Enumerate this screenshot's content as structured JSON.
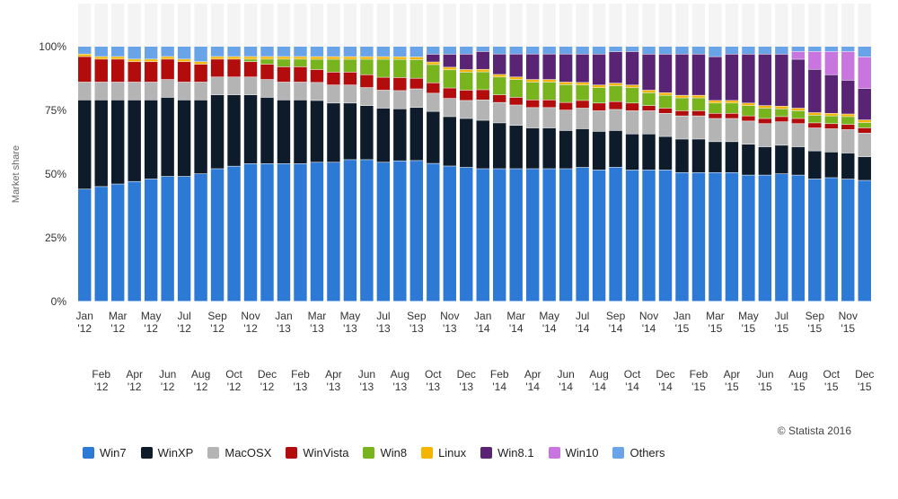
{
  "credit": "© Statista 2016",
  "chart_data": {
    "type": "bar",
    "stacked": true,
    "title": "",
    "xlabel": "",
    "ylabel": "Market share",
    "ylim": [
      0,
      100
    ],
    "y_ticks": [
      "0%",
      "25%",
      "50%",
      "75%",
      "100%"
    ],
    "grid": false,
    "legend_position": "bottom",
    "categories": [
      [
        "Jan",
        "'12"
      ],
      [
        "Feb",
        "'12"
      ],
      [
        "Mar",
        "'12"
      ],
      [
        "Apr",
        "'12"
      ],
      [
        "May",
        "'12"
      ],
      [
        "Jun",
        "'12"
      ],
      [
        "Jul",
        "'12"
      ],
      [
        "Aug",
        "'12"
      ],
      [
        "Sep",
        "'12"
      ],
      [
        "Oct",
        "'12"
      ],
      [
        "Nov",
        "'12"
      ],
      [
        "Dec",
        "'12"
      ],
      [
        "Jan",
        "'13"
      ],
      [
        "Feb",
        "'13"
      ],
      [
        "Mar",
        "'13"
      ],
      [
        "Apr",
        "'13"
      ],
      [
        "May",
        "'13"
      ],
      [
        "Jun",
        "'13"
      ],
      [
        "Jul",
        "'13"
      ],
      [
        "Aug",
        "'13"
      ],
      [
        "Sep",
        "'13"
      ],
      [
        "Oct",
        "'13"
      ],
      [
        "Nov",
        "'13"
      ],
      [
        "Dec",
        "'13"
      ],
      [
        "Jan",
        "'14"
      ],
      [
        "Feb",
        "'14"
      ],
      [
        "Mar",
        "'14"
      ],
      [
        "Apr",
        "'14"
      ],
      [
        "May",
        "'14"
      ],
      [
        "Jun",
        "'14"
      ],
      [
        "Jul",
        "'14"
      ],
      [
        "Aug",
        "'14"
      ],
      [
        "Sep",
        "'14"
      ],
      [
        "Oct",
        "'14"
      ],
      [
        "Nov",
        "'14"
      ],
      [
        "Dec",
        "'14"
      ],
      [
        "Jan",
        "'15"
      ],
      [
        "Feb",
        "'15"
      ],
      [
        "Mar",
        "'15"
      ],
      [
        "Apr",
        "'15"
      ],
      [
        "May",
        "'15"
      ],
      [
        "Jun",
        "'15"
      ],
      [
        "Jul",
        "'15"
      ],
      [
        "Aug",
        "'15"
      ],
      [
        "Sep",
        "'15"
      ],
      [
        "Oct",
        "'15"
      ],
      [
        "Nov",
        "'15"
      ],
      [
        "Dec",
        "'15"
      ]
    ],
    "series": [
      {
        "name": "Win7",
        "color": "#2d7ad6",
        "values": [
          44,
          45,
          46,
          47,
          48,
          49,
          49,
          50,
          52,
          53,
          54,
          54,
          54,
          54,
          54,
          54,
          55,
          55,
          54,
          54,
          53,
          53,
          52,
          52,
          52,
          52,
          52,
          52,
          52,
          52,
          52,
          51,
          51,
          51,
          51,
          51,
          50,
          50,
          50,
          50,
          49,
          49,
          49,
          49,
          48,
          48,
          47,
          46
        ]
      },
      {
        "name": "WinXP",
        "color": "#0d1b2a",
        "values": [
          35,
          34,
          33,
          32,
          31,
          31,
          30,
          29,
          29,
          28,
          27,
          26,
          25,
          25,
          24,
          23,
          22,
          21,
          21,
          20,
          20,
          20,
          19,
          19,
          19,
          18,
          17,
          16,
          16,
          15,
          15,
          15,
          14,
          14,
          14,
          13,
          13,
          13,
          12,
          12,
          12,
          11,
          11,
          11,
          11,
          10,
          10,
          9
        ]
      },
      {
        "name": "MacOSX",
        "color": "#b4b4b4",
        "values": [
          7,
          7,
          7,
          7,
          7,
          7,
          7,
          7,
          7,
          7,
          7,
          7,
          7,
          7,
          7,
          7,
          7,
          7,
          7,
          7,
          7,
          7,
          7,
          7,
          8,
          8,
          8,
          8,
          8,
          8,
          8,
          8,
          8,
          9,
          9,
          9,
          9,
          9,
          9,
          9,
          9,
          9,
          9,
          9,
          9,
          9,
          9,
          9
        ]
      },
      {
        "name": "WinVista",
        "color": "#b30c0c",
        "values": [
          10,
          9,
          9,
          8,
          8,
          8,
          8,
          7,
          7,
          7,
          6,
          6,
          6,
          6,
          5,
          5,
          5,
          5,
          5,
          5,
          4,
          4,
          4,
          4,
          4,
          3,
          3,
          3,
          3,
          3,
          3,
          3,
          3,
          3,
          2,
          2,
          2,
          2,
          2,
          2,
          2,
          2,
          2,
          2,
          2,
          2,
          2,
          2
        ]
      },
      {
        "name": "Win8",
        "color": "#78b41e",
        "values": [
          0,
          0,
          0,
          0,
          0,
          0,
          0,
          0,
          0,
          0,
          1,
          2,
          3,
          3,
          4,
          5,
          5,
          6,
          7,
          7,
          7,
          7,
          7,
          7,
          7,
          7,
          7,
          7,
          7,
          7,
          6,
          6,
          6,
          6,
          5,
          5,
          5,
          5,
          4,
          4,
          4,
          4,
          3,
          3,
          3,
          3,
          3,
          2
        ]
      },
      {
        "name": "Linux",
        "color": "#f5b400",
        "values": [
          1,
          1,
          1,
          1,
          1,
          1,
          1,
          1,
          1,
          1,
          1,
          1,
          1,
          1,
          1,
          1,
          1,
          1,
          1,
          1,
          1,
          1,
          1,
          1,
          1,
          1,
          1,
          1,
          1,
          1,
          1,
          1,
          1,
          1,
          1,
          1,
          1,
          1,
          1,
          1,
          1,
          1,
          1,
          1,
          1,
          1,
          1,
          1
        ]
      },
      {
        "name": "Win8.1",
        "color": "#5a2474",
        "values": [
          0,
          0,
          0,
          0,
          0,
          0,
          0,
          0,
          0,
          0,
          0,
          0,
          0,
          0,
          0,
          0,
          0,
          0,
          0,
          0,
          0,
          3,
          5,
          6,
          7,
          8,
          9,
          10,
          10,
          11,
          11,
          12,
          12,
          13,
          14,
          15,
          16,
          16,
          17,
          18,
          19,
          20,
          20,
          19,
          17,
          15,
          13,
          12
        ]
      },
      {
        "name": "Win10",
        "color": "#c875e0",
        "values": [
          0,
          0,
          0,
          0,
          0,
          0,
          0,
          0,
          0,
          0,
          0,
          0,
          0,
          0,
          0,
          0,
          0,
          0,
          0,
          0,
          0,
          0,
          0,
          0,
          0,
          0,
          0,
          0,
          0,
          0,
          0,
          0,
          0,
          0,
          0,
          0,
          0,
          0,
          0,
          0,
          0,
          0,
          0,
          3,
          7,
          9,
          11,
          12
        ]
      },
      {
        "name": "Others",
        "color": "#6aa4e8",
        "values": [
          3,
          4,
          4,
          5,
          5,
          4,
          5,
          6,
          4,
          4,
          4,
          4,
          4,
          4,
          4,
          4,
          4,
          4,
          4,
          4,
          4,
          3,
          3,
          3,
          2,
          3,
          3,
          3,
          3,
          3,
          3,
          3,
          2,
          2,
          3,
          3,
          3,
          3,
          4,
          3,
          3,
          3,
          3,
          2,
          2,
          2,
          2,
          4
        ]
      }
    ]
  }
}
